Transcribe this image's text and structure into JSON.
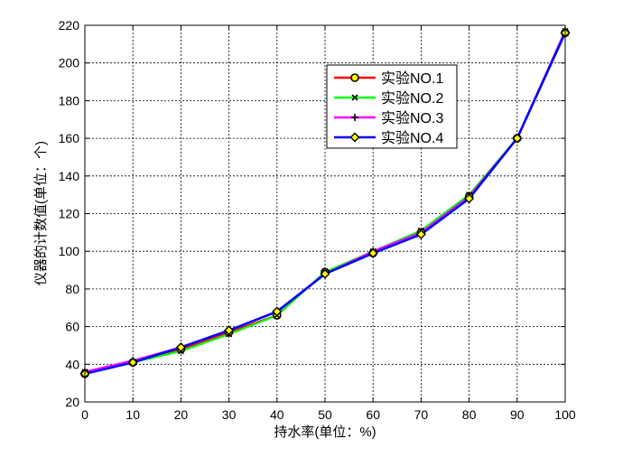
{
  "chart_data": {
    "type": "line",
    "xlabel": "持水率(单位：%)",
    "ylabel": "仪器的计数值(单位：个)",
    "xlim": [
      0,
      100
    ],
    "ylim": [
      20,
      220
    ],
    "xticks": [
      0,
      10,
      20,
      30,
      40,
      50,
      60,
      70,
      80,
      90,
      100
    ],
    "yticks": [
      20,
      40,
      60,
      80,
      100,
      120,
      140,
      160,
      180,
      200,
      220
    ],
    "grid": true,
    "legend_position": "top-right",
    "x": [
      0,
      10,
      20,
      30,
      40,
      50,
      60,
      70,
      80,
      90,
      100
    ],
    "series": [
      {
        "name": "实验NO.1",
        "color": "#ff0000",
        "marker": "circle",
        "values": [
          35,
          41,
          48,
          57,
          66,
          89,
          99,
          110,
          129,
          160,
          216
        ]
      },
      {
        "name": "实验NO.2",
        "color": "#00ff00",
        "marker": "x",
        "values": [
          36,
          41,
          47,
          56,
          66,
          89,
          100,
          111,
          130,
          160,
          217
        ]
      },
      {
        "name": "实验NO.3",
        "color": "#ff00ff",
        "marker": "plus",
        "values": [
          36,
          42,
          49,
          58,
          68,
          88,
          100,
          110,
          129,
          160,
          217
        ]
      },
      {
        "name": "实验NO.4",
        "color": "#0000ff",
        "marker": "diamond",
        "values": [
          35,
          41,
          49,
          58,
          68,
          88,
          99,
          109,
          128,
          160,
          216
        ]
      }
    ]
  }
}
